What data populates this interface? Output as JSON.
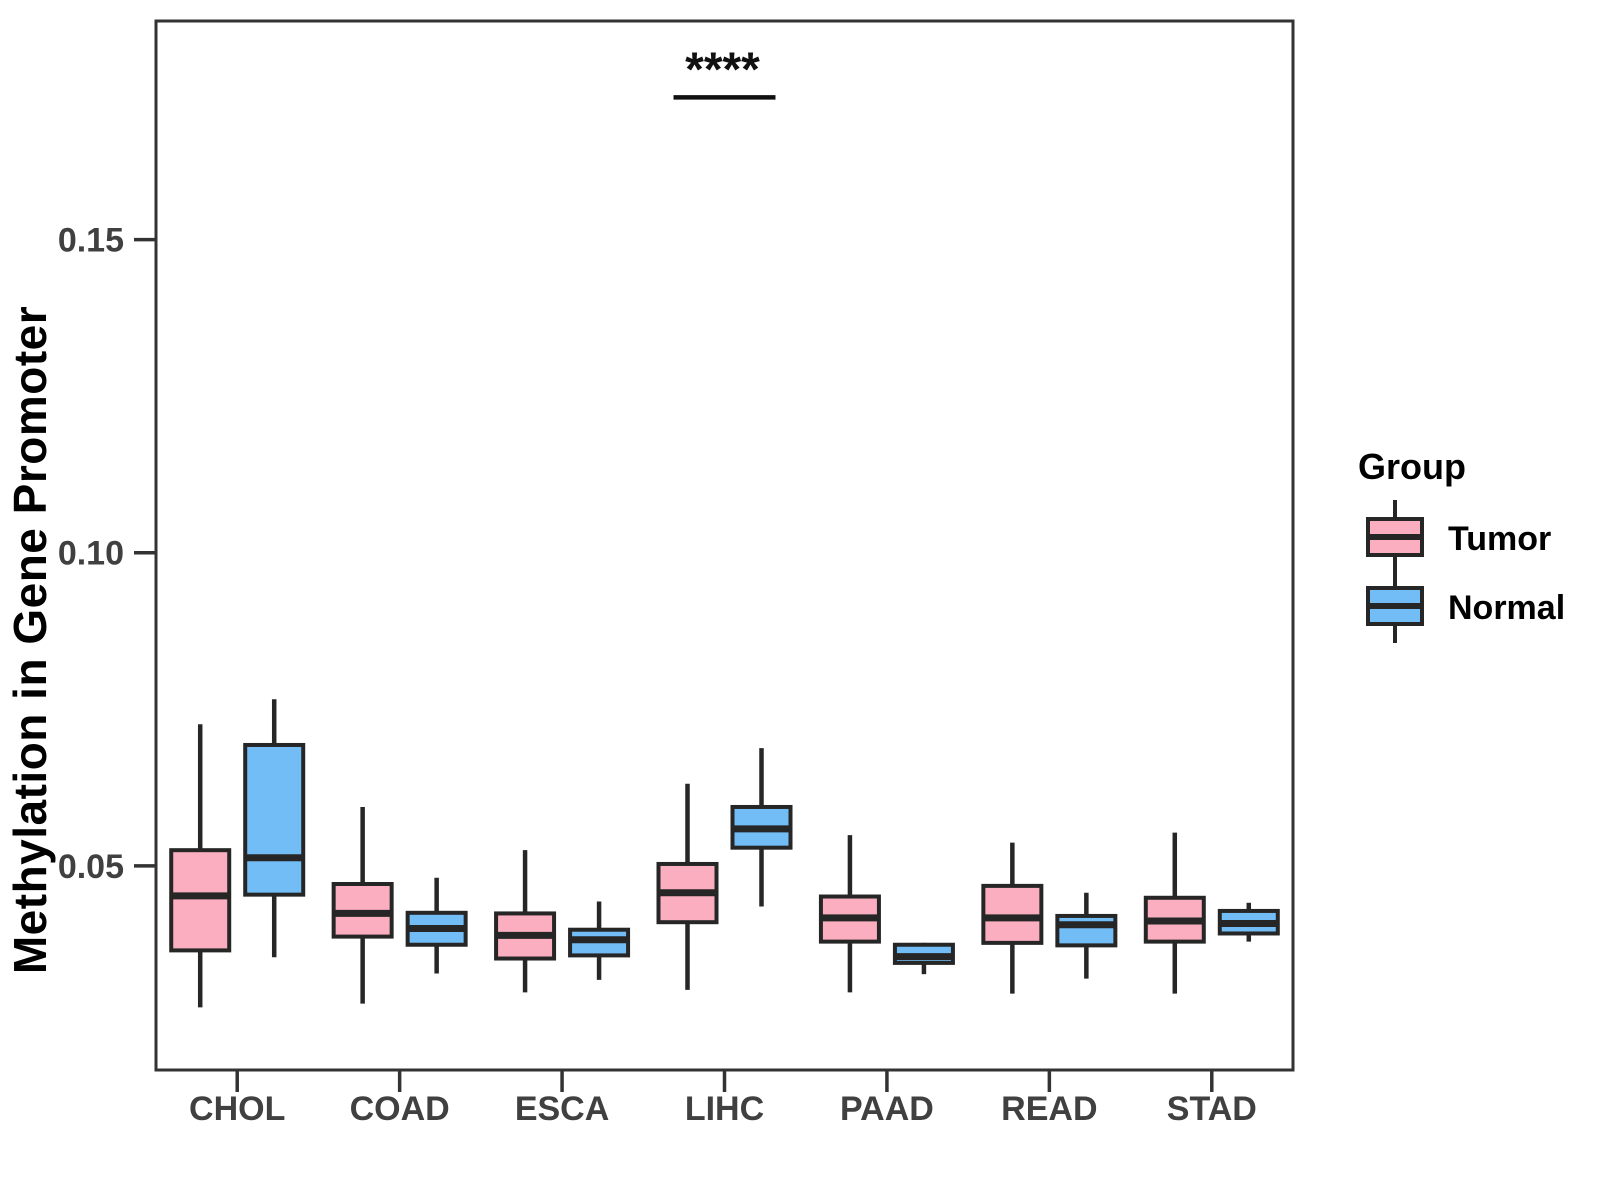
{
  "chart_data": {
    "type": "boxplot",
    "title": "",
    "xlabel": "",
    "ylabel": "Methylation in Gene Promoter",
    "categories": [
      "CHOL",
      "COAD",
      "ESCA",
      "LIHC",
      "PAAD",
      "READ",
      "STAD"
    ],
    "ylim": [
      0.0174,
      0.1849
    ],
    "yticks": [
      {
        "value": 0.05,
        "label": "0.05"
      },
      {
        "value": 0.1,
        "label": "0.10"
      },
      {
        "value": 0.15,
        "label": "0.15"
      }
    ],
    "grid": false,
    "box_stroke": "#262626",
    "legend": {
      "title": "Group",
      "position": "right",
      "entries": [
        {
          "label": "Tumor",
          "color": "#FBAEC0"
        },
        {
          "label": "Normal",
          "color": "#73BDF6"
        }
      ]
    },
    "series": [
      {
        "name": "Tumor",
        "color": "#FBAEC0",
        "boxes": [
          {
            "category": "CHOL",
            "min": 0.0274,
            "q1": 0.0365,
            "median": 0.0452,
            "q3": 0.0525,
            "max": 0.0726
          },
          {
            "category": "COAD",
            "min": 0.028,
            "q1": 0.0387,
            "median": 0.0424,
            "q3": 0.0471,
            "max": 0.0594
          },
          {
            "category": "ESCA",
            "min": 0.0298,
            "q1": 0.0352,
            "median": 0.0389,
            "q3": 0.0424,
            "max": 0.0525
          },
          {
            "category": "LIHC",
            "min": 0.0302,
            "q1": 0.041,
            "median": 0.0457,
            "q3": 0.0503,
            "max": 0.0631
          },
          {
            "category": "PAAD",
            "min": 0.0298,
            "q1": 0.0379,
            "median": 0.0417,
            "q3": 0.0451,
            "max": 0.0549
          },
          {
            "category": "READ",
            "min": 0.0296,
            "q1": 0.0377,
            "median": 0.0417,
            "q3": 0.0468,
            "max": 0.0537
          },
          {
            "category": "STAD",
            "min": 0.0296,
            "q1": 0.0379,
            "median": 0.0412,
            "q3": 0.0449,
            "max": 0.0553
          }
        ]
      },
      {
        "name": "Normal",
        "color": "#73BDF6",
        "boxes": [
          {
            "category": "CHOL",
            "min": 0.0354,
            "q1": 0.0454,
            "median": 0.0513,
            "q3": 0.0693,
            "max": 0.0766
          },
          {
            "category": "COAD",
            "min": 0.0328,
            "q1": 0.0374,
            "median": 0.04,
            "q3": 0.0425,
            "max": 0.0481
          },
          {
            "category": "ESCA",
            "min": 0.0318,
            "q1": 0.0357,
            "median": 0.0382,
            "q3": 0.0398,
            "max": 0.0443
          },
          {
            "category": "LIHC",
            "min": 0.0435,
            "q1": 0.0529,
            "median": 0.0559,
            "q3": 0.0594,
            "max": 0.0688
          },
          {
            "category": "PAAD",
            "min": 0.0327,
            "q1": 0.0345,
            "median": 0.0355,
            "q3": 0.0374,
            "max": 0.0377
          },
          {
            "category": "READ",
            "min": 0.032,
            "q1": 0.0373,
            "median": 0.0406,
            "q3": 0.042,
            "max": 0.0457
          },
          {
            "category": "STAD",
            "min": 0.0379,
            "q1": 0.0392,
            "median": 0.0408,
            "q3": 0.0428,
            "max": 0.0441
          }
        ]
      }
    ],
    "annotation": {
      "label": "****",
      "category": "LIHC",
      "line_y": 0.1727
    }
  }
}
